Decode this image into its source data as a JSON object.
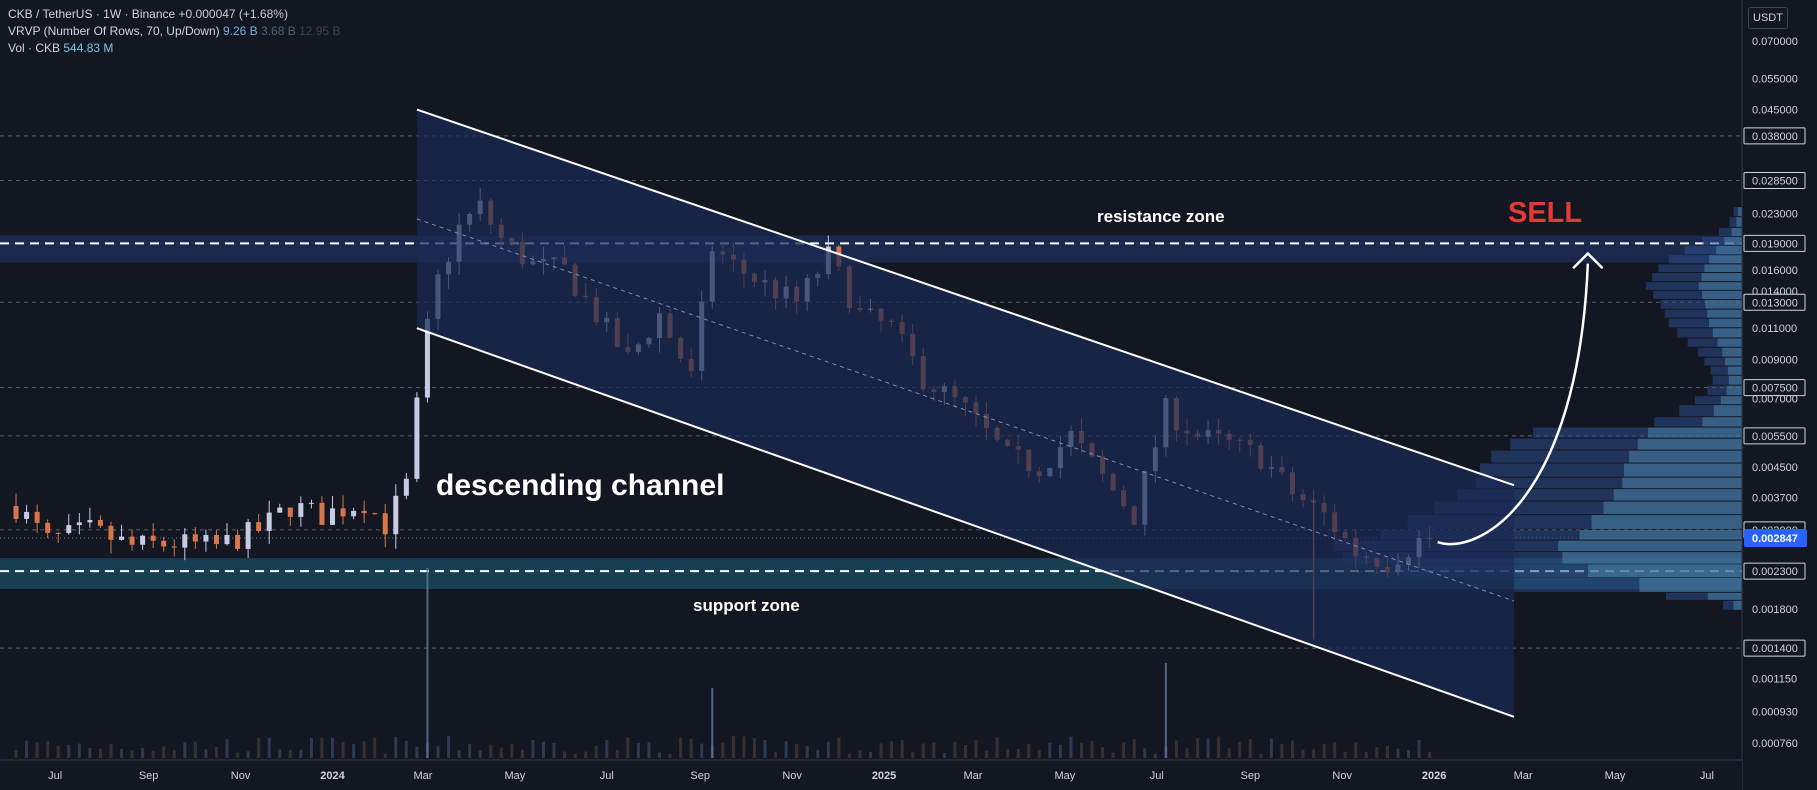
{
  "legend": {
    "symbol_line": "CKB / TetherUS · 1W · Binance",
    "change": "+0.000047 (+1.68%)",
    "vrvp_label": "VRVP (Number Of Rows, 70, Up/Down)",
    "vrvp_values": [
      "9.26 B",
      "3.68 B",
      "12.95 B"
    ],
    "vol_label": "Vol · CKB",
    "vol_value": "544.83 M"
  },
  "currency_button": "USDT",
  "colors": {
    "background": "#131722",
    "up": "#c5cbe3",
    "down": "#d9764a",
    "channel_fill": "#1a2a55",
    "support_fill": "#1a4a5e",
    "sell": "#e53935",
    "price_badge": "#2962ff"
  },
  "chart_data": {
    "type": "candlestick",
    "interval": "1W",
    "y_scale": "log",
    "y_ticks": [
      "0.070000",
      "0.055000",
      "0.045000",
      "0.038000",
      "0.028500",
      "0.023000",
      "0.019000",
      "0.016000",
      "0.014000",
      "0.013000",
      "0.011000",
      "0.009000",
      "0.007500",
      "0.007000",
      "0.005500",
      "0.004500",
      "0.003700",
      "0.003000",
      "0.002300",
      "0.001800",
      "0.001400",
      "0.001150",
      "0.000930",
      "0.000760"
    ],
    "boxed_y_ticks": [
      "0.038000",
      "0.028500",
      "0.019000",
      "0.013000",
      "0.007500",
      "0.005500",
      "0.003000",
      "0.002300",
      "0.001400"
    ],
    "current_price": "0.002847",
    "x_labels": [
      {
        "label": "Jul",
        "date": "2023-07-01"
      },
      {
        "label": "Sep",
        "date": "2023-09-01"
      },
      {
        "label": "Nov",
        "date": "2023-11-01"
      },
      {
        "label": "2024",
        "date": "2024-01-01"
      },
      {
        "label": "Mar",
        "date": "2024-03-01"
      },
      {
        "label": "May",
        "date": "2024-05-01"
      },
      {
        "label": "Jul",
        "date": "2024-07-01"
      },
      {
        "label": "Sep",
        "date": "2024-09-01"
      },
      {
        "label": "Nov",
        "date": "2024-11-01"
      },
      {
        "label": "2025",
        "date": "2025-01-01"
      },
      {
        "label": "Mar",
        "date": "2025-03-01"
      },
      {
        "label": "May",
        "date": "2025-05-01"
      },
      {
        "label": "Jul",
        "date": "2025-07-01"
      },
      {
        "label": "Sep",
        "date": "2025-09-01"
      },
      {
        "label": "Nov",
        "date": "2025-11-01"
      },
      {
        "label": "2026",
        "date": "2026-01-01"
      },
      {
        "label": "Mar",
        "date": "2026-03-01"
      },
      {
        "label": "May",
        "date": "2026-05-01"
      },
      {
        "label": "Jul",
        "date": "2026-07-01"
      }
    ],
    "price_path": [
      {
        "date": "2023-06-05",
        "close": 0.0035
      },
      {
        "date": "2023-06-26",
        "close": 0.0028
      },
      {
        "date": "2023-07-24",
        "close": 0.003
      },
      {
        "date": "2023-08-21",
        "close": 0.0027
      },
      {
        "date": "2023-09-18",
        "close": 0.00275
      },
      {
        "date": "2023-10-16",
        "close": 0.0027
      },
      {
        "date": "2023-11-13",
        "close": 0.003
      },
      {
        "date": "2023-12-04",
        "close": 0.0035
      },
      {
        "date": "2023-12-25",
        "close": 0.0033
      },
      {
        "date": "2024-01-22",
        "close": 0.0036
      },
      {
        "date": "2024-02-05",
        "close": 0.0031
      },
      {
        "date": "2024-02-19",
        "close": 0.004
      },
      {
        "date": "2024-03-04",
        "close": 0.011
      },
      {
        "date": "2024-03-11",
        "close": 0.015
      },
      {
        "date": "2024-03-25",
        "close": 0.021
      },
      {
        "date": "2024-04-08",
        "close": 0.024
      },
      {
        "date": "2024-04-22",
        "close": 0.0195
      },
      {
        "date": "2024-05-13",
        "close": 0.0165
      },
      {
        "date": "2024-06-03",
        "close": 0.016
      },
      {
        "date": "2024-06-24",
        "close": 0.012
      },
      {
        "date": "2024-07-15",
        "close": 0.009
      },
      {
        "date": "2024-08-05",
        "close": 0.012
      },
      {
        "date": "2024-08-26",
        "close": 0.008
      },
      {
        "date": "2024-09-09",
        "close": 0.0185
      },
      {
        "date": "2024-09-23",
        "close": 0.0165
      },
      {
        "date": "2024-10-14",
        "close": 0.0145
      },
      {
        "date": "2024-11-04",
        "close": 0.013
      },
      {
        "date": "2024-11-25",
        "close": 0.0175
      },
      {
        "date": "2024-12-16",
        "close": 0.012
      },
      {
        "date": "2025-01-06",
        "close": 0.011
      },
      {
        "date": "2025-01-27",
        "close": 0.008
      },
      {
        "date": "2025-02-24",
        "close": 0.0065
      },
      {
        "date": "2025-03-24",
        "close": 0.0048
      },
      {
        "date": "2025-04-14",
        "close": 0.0045
      },
      {
        "date": "2025-05-05",
        "close": 0.0055
      },
      {
        "date": "2025-05-26",
        "close": 0.0042
      },
      {
        "date": "2025-06-16",
        "close": 0.0033
      },
      {
        "date": "2025-07-07",
        "close": 0.0065
      },
      {
        "date": "2025-07-28",
        "close": 0.0055
      },
      {
        "date": "2025-08-18",
        "close": 0.0052
      },
      {
        "date": "2025-09-08",
        "close": 0.0048
      },
      {
        "date": "2025-09-29",
        "close": 0.0038
      },
      {
        "date": "2025-10-20",
        "close": 0.0033
      },
      {
        "date": "2025-11-10",
        "close": 0.0026
      },
      {
        "date": "2025-12-01",
        "close": 0.00245
      },
      {
        "date": "2025-12-22",
        "close": 0.0028
      },
      {
        "date": "2025-12-29",
        "close": 0.00285
      }
    ],
    "volume_spikes": [
      {
        "date": "2024-03-04",
        "value": 544.83
      },
      {
        "date": "2025-07-07",
        "value": 120
      },
      {
        "date": "2024-09-09",
        "value": 95
      }
    ],
    "annotations": {
      "channel_label": "descending channel",
      "resistance_label": "resistance zone",
      "support_label": "support zone",
      "signal": "SELL"
    }
  }
}
